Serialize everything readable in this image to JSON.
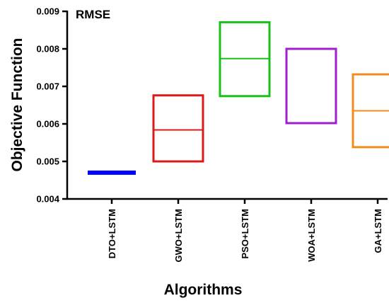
{
  "chart_data": {
    "type": "box",
    "title": "RMSE",
    "xlabel": "Algorithms",
    "ylabel": "Objective Function",
    "ylim": [
      0.004,
      0.009
    ],
    "yticks": [
      "0.004",
      "0.005",
      "0.006",
      "0.007",
      "0.008",
      "0.009"
    ],
    "grid": false,
    "legend": "none",
    "categories": [
      "DTO+LSTM",
      "GWO+LSTM",
      "PSO+LSTM",
      "WOA+LSTM",
      "GA+LSTM"
    ],
    "series": [
      {
        "category": "DTO+LSTM",
        "min": 0.00468,
        "median": 0.0047,
        "max": 0.00472,
        "color": "#0000ff"
      },
      {
        "category": "GWO+LSTM",
        "min": 0.005,
        "median": 0.00584,
        "max": 0.00676,
        "color": "#dd1a1a"
      },
      {
        "category": "PSO+LSTM",
        "min": 0.00674,
        "median": 0.00774,
        "max": 0.00871,
        "color": "#19c019"
      },
      {
        "category": "WOA+LSTM",
        "min": 0.00602,
        "median": 0.008,
        "max": 0.008,
        "color": "#a020d0"
      },
      {
        "category": "GA+LSTM",
        "min": 0.00538,
        "median": 0.00635,
        "max": 0.00732,
        "color": "#f08c1e"
      }
    ]
  }
}
